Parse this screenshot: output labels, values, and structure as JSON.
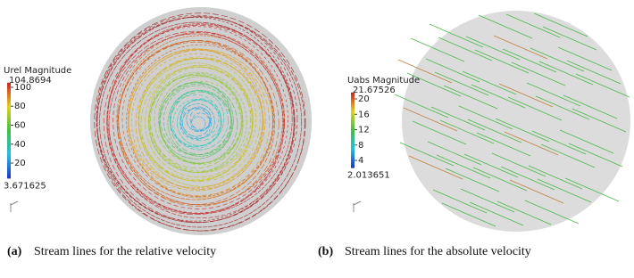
{
  "panels": [
    {
      "label": "(a)",
      "caption": "Stream lines for the relative velocity",
      "colorbar": {
        "title": "Urel Magnitude",
        "min": 3.671625,
        "max": 104.8694,
        "ticks": [
          20,
          40,
          60,
          80,
          100
        ]
      }
    },
    {
      "label": "(b)",
      "caption": "Stream lines for the absolute velocity",
      "colorbar": {
        "title": "Uabs Magnitude",
        "min": 2.013651,
        "max": 21.67526,
        "ticks": [
          4,
          8,
          12,
          16,
          20
        ]
      }
    }
  ]
}
